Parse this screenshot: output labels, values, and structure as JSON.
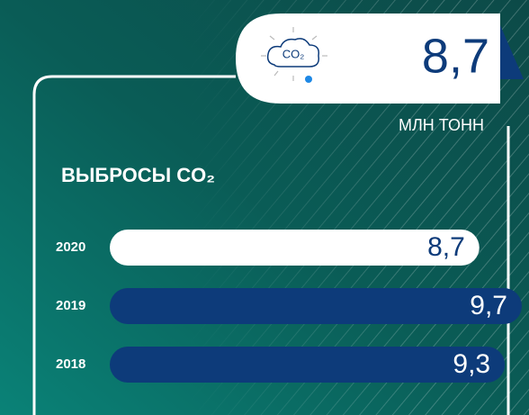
{
  "chart_data": {
    "type": "bar",
    "headline": "8,7",
    "unit": "МЛН ТОНН",
    "icon_text": "CO₂",
    "title": "ВЫБРОСЫ CO₂",
    "categories": [
      "2020",
      "2019",
      "2018"
    ],
    "values": [
      8.7,
      9.7,
      9.3
    ],
    "value_labels": [
      "8,7",
      "9,7",
      "9,3"
    ],
    "colors": [
      "#ffffff",
      "#0d3b7a",
      "#0d3b7a"
    ],
    "label_colors": [
      "#0d3b7a",
      "#ffffff",
      "#ffffff"
    ]
  }
}
